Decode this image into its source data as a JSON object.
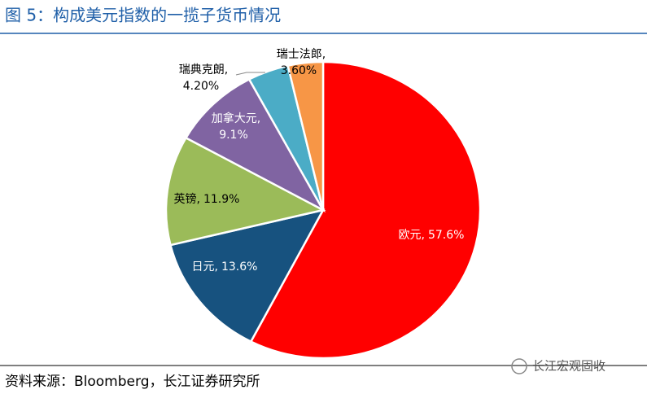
{
  "chart_data": {
    "type": "pie",
    "title": "图 5：构成美元指数的一揽子货币情况",
    "categories": [
      "欧元,",
      "日元,",
      "英镑,",
      "加拿大元,",
      "瑞典克朗,",
      "瑞士法郎,"
    ],
    "values": [
      57.6,
      13.6,
      11.9,
      9.1,
      4.2,
      3.6
    ],
    "value_labels": [
      "57.6%",
      "13.6%",
      "11.9%",
      "9.1%",
      "4.20%",
      "3.60%"
    ],
    "colors": [
      "#ff0000",
      "#17527f",
      "#9bbb59",
      "#8064a2",
      "#4bacc6",
      "#f79646"
    ],
    "source": "资料来源：Bloomberg，长江证券研究所",
    "watermark": "长江宏观固收"
  }
}
